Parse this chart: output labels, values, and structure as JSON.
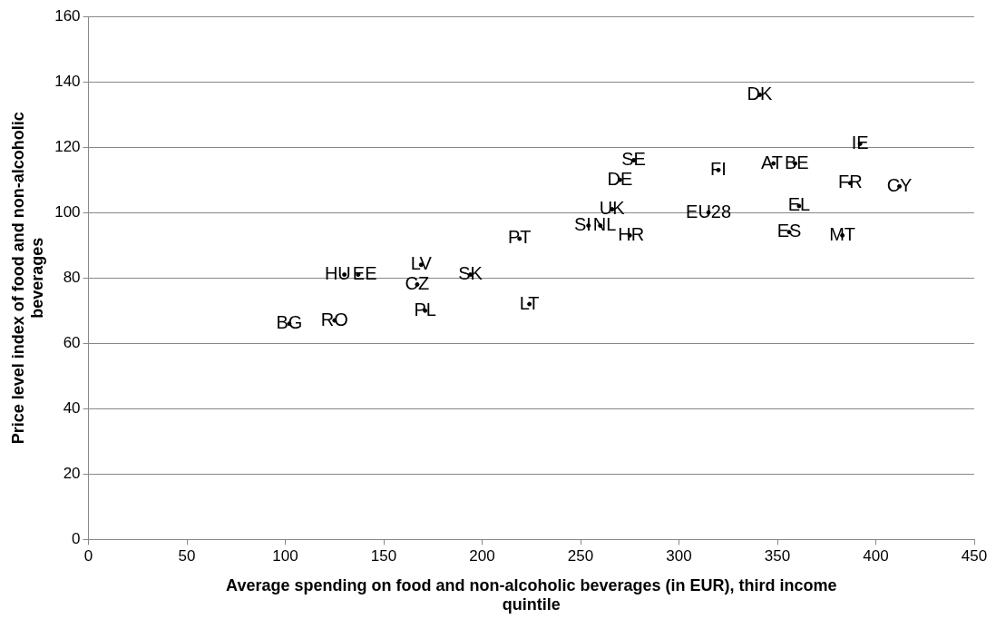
{
  "chart_data": {
    "type": "scatter",
    "xlabel": "Average spending on food and non-alcoholic beverages (in EUR), third income quintile",
    "ylabel": "Price level index of food and non-alcoholic beverages",
    "x": [
      102,
      125,
      130,
      137,
      169,
      167,
      171,
      194,
      224,
      219,
      254,
      260,
      266,
      275,
      270,
      277,
      320,
      315,
      348,
      359,
      361,
      356,
      341,
      392,
      387,
      412,
      383
    ],
    "series": [
      {
        "color": "#000000",
        "values": [
          66,
          67,
          81,
          81,
          84,
          78,
          70,
          81,
          72,
          92,
          96,
          96,
          101,
          93,
          110,
          116,
          113,
          100,
          115,
          115,
          102,
          94,
          136,
          121,
          109,
          108,
          93
        ],
        "value_labels": [
          "BG",
          "RO",
          "HU",
          "EE",
          "LV",
          "CZ",
          "PL",
          "SK",
          "LT",
          "PT",
          "SI",
          "NL",
          "UK",
          "HR",
          "DE",
          "SE",
          "FI",
          "EU28",
          "AT",
          "BE",
          "EL",
          "ES",
          "DK",
          "IE",
          "FR",
          "CY",
          "MT"
        ]
      }
    ],
    "marker": "circle",
    "grid": "y",
    "xlim": [
      0,
      450
    ],
    "xticks": [
      0,
      50,
      100,
      150,
      200,
      250,
      300,
      350,
      400,
      450
    ],
    "ylim": [
      0,
      160
    ],
    "yticks": [
      0,
      20,
      40,
      60,
      80,
      100,
      120,
      140,
      160
    ]
  }
}
